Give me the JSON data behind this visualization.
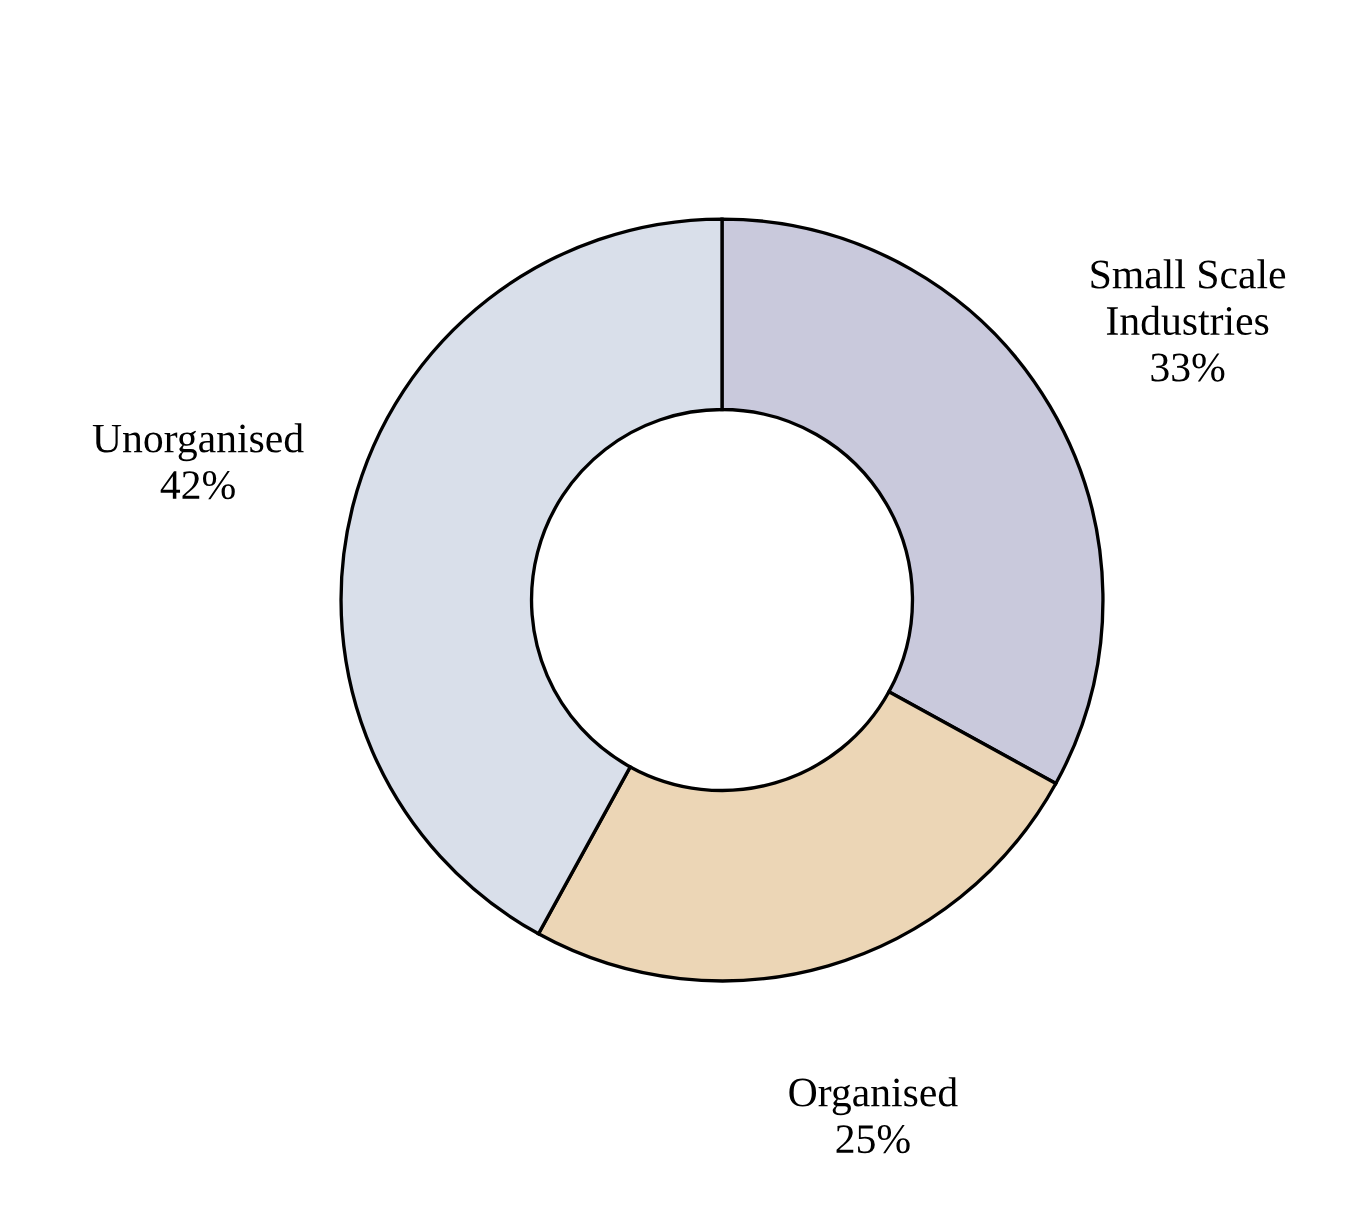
{
  "chart_data": {
    "type": "donut",
    "categories": [
      "Small Scale Industries",
      "Organised",
      "Unorganised"
    ],
    "values": [
      33,
      25,
      42
    ],
    "colors": [
      "#c9c9dc",
      "#ecd6b6",
      "#d9dfea"
    ],
    "value_labels": [
      "33%",
      "25%",
      "42%"
    ],
    "legend": false
  }
}
